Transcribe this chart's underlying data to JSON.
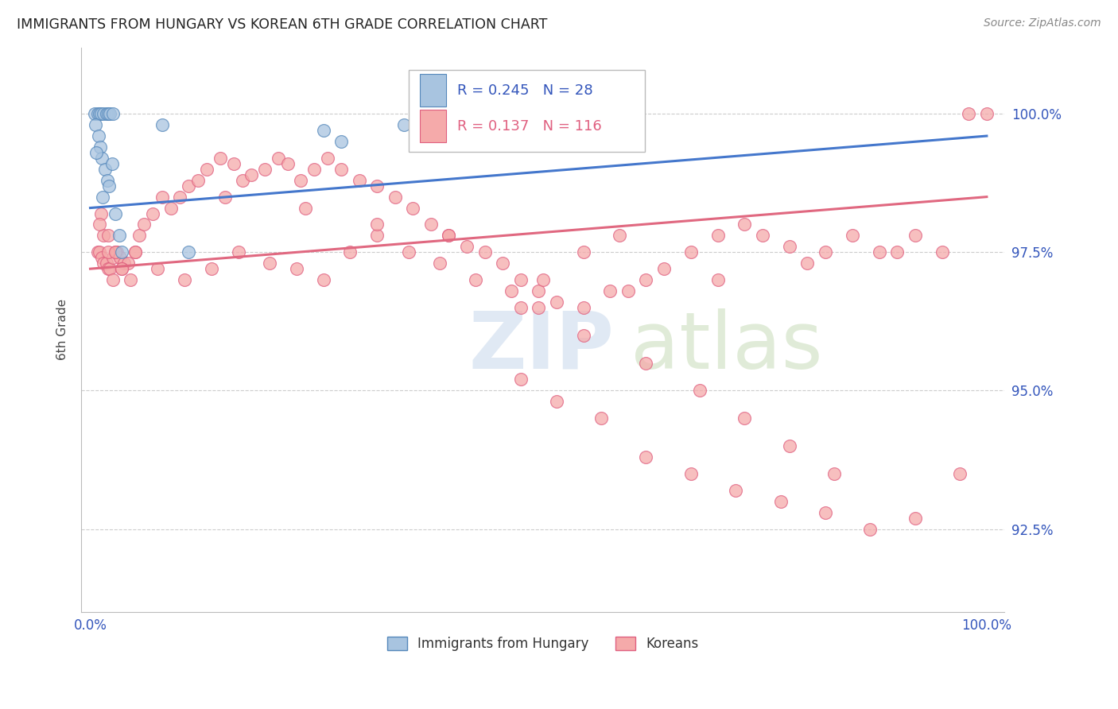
{
  "title": "IMMIGRANTS FROM HUNGARY VS KOREAN 6TH GRADE CORRELATION CHART",
  "source": "Source: ZipAtlas.com",
  "ylabel": "6th Grade",
  "legend_blue_r": "0.245",
  "legend_blue_n": "28",
  "legend_pink_r": "0.137",
  "legend_pink_n": "116",
  "legend_label_blue": "Immigrants from Hungary",
  "legend_label_pink": "Koreans",
  "ylim": [
    91.0,
    101.2
  ],
  "xlim": [
    -1.0,
    102.0
  ],
  "blue_fill": "#A8C4E0",
  "blue_edge": "#5588BB",
  "pink_fill": "#F5AAAA",
  "pink_edge": "#E06080",
  "blue_line_color": "#4477CC",
  "pink_line_color": "#E06880",
  "grid_color": "#CCCCCC",
  "title_color": "#222222",
  "tick_color": "#3355BB",
  "ytick_vals": [
    92.5,
    95.0,
    97.5,
    100.0
  ],
  "ytick_labels": [
    "92.5%",
    "95.0%",
    "97.5%",
    "100.0%"
  ],
  "blue_line_x0": 0.0,
  "blue_line_y0": 98.3,
  "blue_line_x1": 100.0,
  "blue_line_y1": 99.6,
  "pink_line_x0": 0.0,
  "pink_line_y0": 97.2,
  "pink_line_x1": 100.0,
  "pink_line_y1": 98.5,
  "blue_points_x": [
    0.5,
    0.8,
    1.0,
    1.2,
    1.5,
    1.8,
    2.0,
    2.2,
    2.5,
    0.6,
    0.9,
    1.1,
    1.3,
    1.6,
    1.9,
    2.1,
    2.4,
    0.7,
    1.4,
    2.8,
    3.5,
    26.0,
    28.0,
    35.0,
    38.0,
    8.0,
    11.0,
    3.2
  ],
  "blue_points_y": [
    100.0,
    100.0,
    100.0,
    100.0,
    100.0,
    100.0,
    100.0,
    100.0,
    100.0,
    99.8,
    99.6,
    99.4,
    99.2,
    99.0,
    98.8,
    98.7,
    99.1,
    99.3,
    98.5,
    98.2,
    97.5,
    99.7,
    99.5,
    99.8,
    99.6,
    99.8,
    97.5,
    97.8
  ],
  "pink_points_x": [
    0.8,
    1.0,
    1.3,
    1.5,
    1.8,
    2.0,
    2.2,
    2.5,
    2.8,
    3.0,
    3.3,
    3.8,
    4.2,
    5.0,
    5.5,
    6.0,
    7.0,
    8.0,
    9.0,
    10.0,
    11.0,
    12.0,
    13.0,
    14.5,
    16.0,
    17.0,
    18.0,
    19.5,
    21.0,
    22.0,
    23.5,
    25.0,
    26.5,
    28.0,
    30.0,
    32.0,
    34.0,
    36.0,
    38.0,
    40.0,
    42.0,
    44.0,
    46.0,
    48.0,
    50.0,
    52.0,
    55.0,
    58.0,
    62.0,
    64.0,
    67.0,
    70.0,
    73.0,
    75.0,
    78.0,
    82.0,
    85.0,
    88.0,
    92.0,
    95.0,
    98.0,
    100.0,
    1.2,
    1.5,
    2.0,
    2.5,
    3.5,
    5.0,
    7.5,
    10.5,
    13.5,
    16.5,
    20.0,
    23.0,
    26.0,
    29.0,
    32.0,
    35.5,
    39.0,
    43.0,
    47.0,
    50.5,
    55.0,
    59.0,
    48.0,
    52.0,
    57.0,
    62.0,
    67.0,
    72.0,
    77.0,
    82.0,
    87.0,
    92.0,
    97.0,
    50.0,
    60.0,
    70.0,
    80.0,
    90.0,
    1.0,
    2.0,
    2.8,
    3.5,
    4.5,
    15.0,
    24.0,
    32.0,
    40.0,
    48.0,
    55.0,
    62.0,
    68.0,
    73.0,
    78.0,
    83.0
  ],
  "pink_points_y": [
    97.5,
    97.5,
    97.4,
    97.3,
    97.3,
    97.2,
    97.2,
    97.4,
    97.5,
    97.5,
    97.4,
    97.3,
    97.3,
    97.5,
    97.8,
    98.0,
    98.2,
    98.5,
    98.3,
    98.5,
    98.7,
    98.8,
    99.0,
    99.2,
    99.1,
    98.8,
    98.9,
    99.0,
    99.2,
    99.1,
    98.8,
    99.0,
    99.2,
    99.0,
    98.8,
    98.7,
    98.5,
    98.3,
    98.0,
    97.8,
    97.6,
    97.5,
    97.3,
    97.0,
    96.8,
    96.6,
    96.5,
    96.8,
    97.0,
    97.2,
    97.5,
    97.8,
    98.0,
    97.8,
    97.6,
    97.5,
    97.8,
    97.5,
    97.8,
    97.5,
    100.0,
    100.0,
    98.2,
    97.8,
    97.5,
    97.0,
    97.2,
    97.5,
    97.2,
    97.0,
    97.2,
    97.5,
    97.3,
    97.2,
    97.0,
    97.5,
    97.8,
    97.5,
    97.3,
    97.0,
    96.8,
    97.0,
    97.5,
    97.8,
    95.2,
    94.8,
    94.5,
    93.8,
    93.5,
    93.2,
    93.0,
    92.8,
    92.5,
    92.7,
    93.5,
    96.5,
    96.8,
    97.0,
    97.3,
    97.5,
    98.0,
    97.8,
    97.5,
    97.2,
    97.0,
    98.5,
    98.3,
    98.0,
    97.8,
    96.5,
    96.0,
    95.5,
    95.0,
    94.5,
    94.0,
    93.5
  ]
}
